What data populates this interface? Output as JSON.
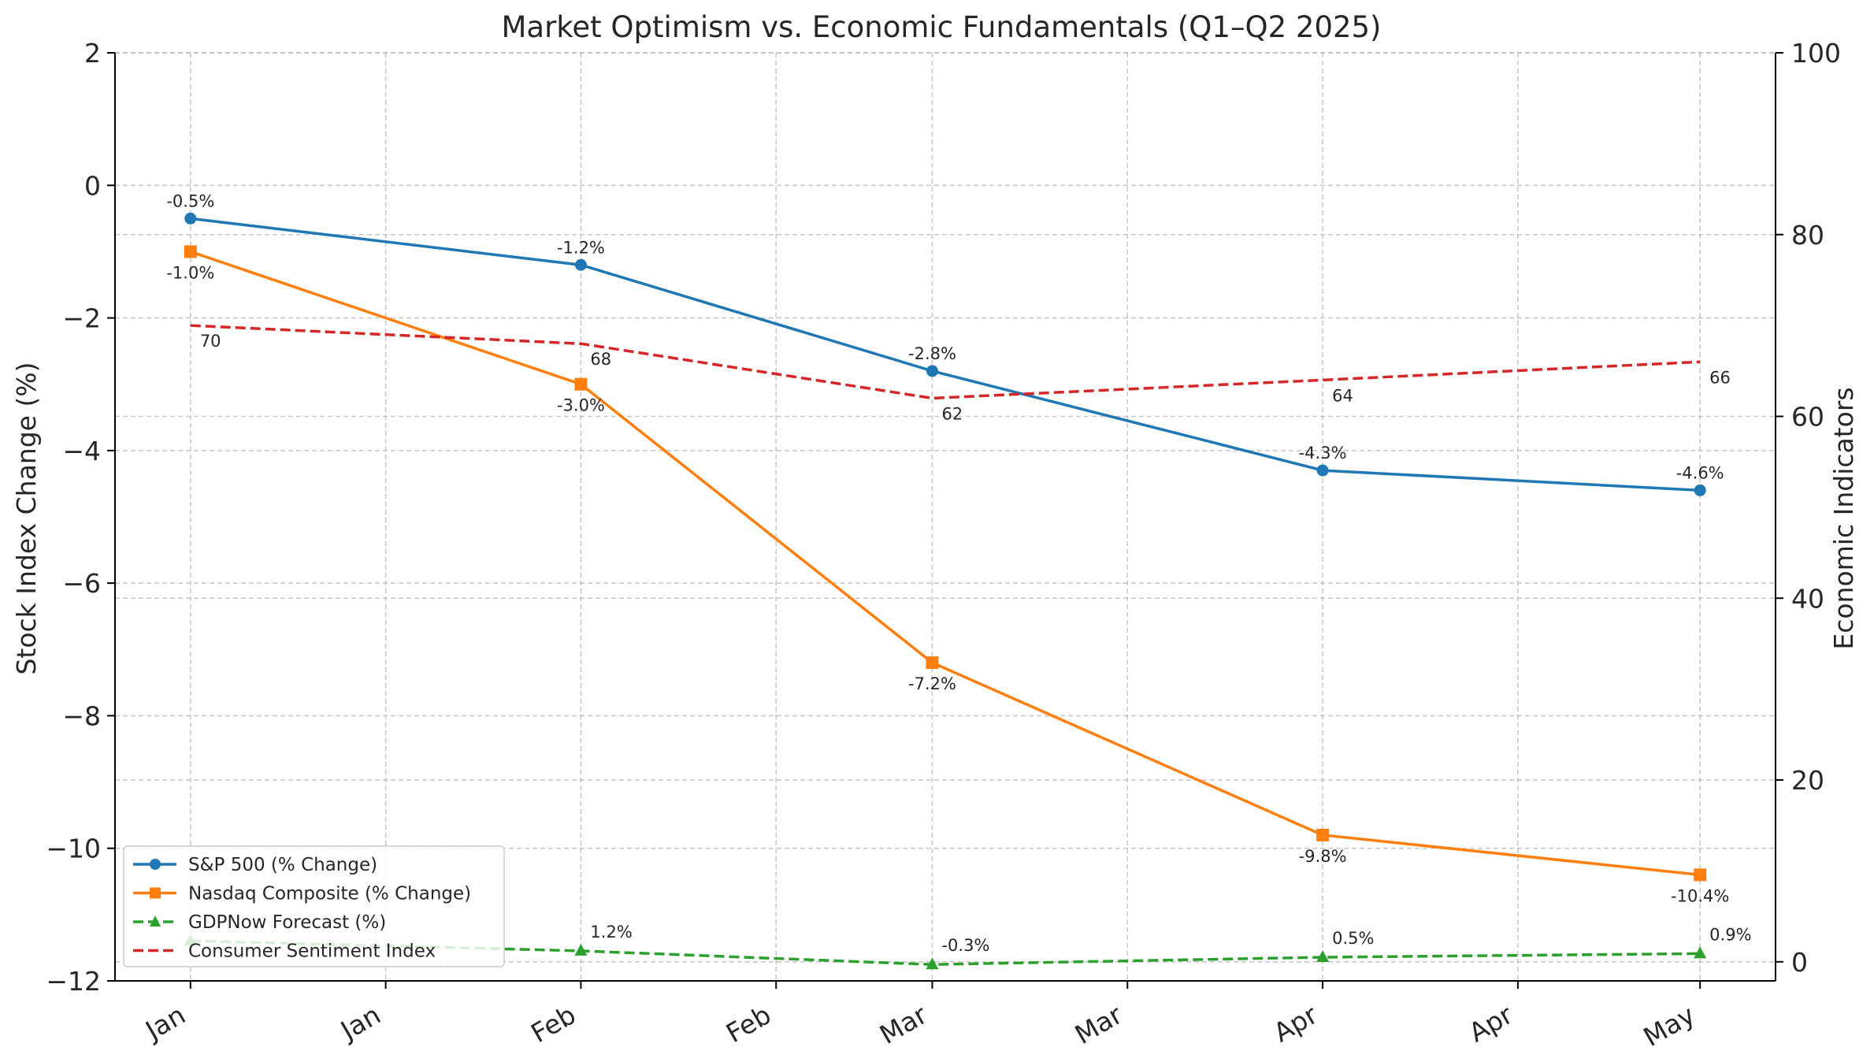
{
  "chart_data": {
    "type": "line",
    "title": "Market Optimism vs. Economic Fundamentals (Q1–Q2 2025)",
    "xlabel": "",
    "ylabel": "Stock Index Change (%)",
    "y2label": "Economic Indicators",
    "ylim": [
      -12,
      2
    ],
    "y2lim": [
      -2.1,
      100
    ],
    "yticks": [
      "2",
      "0",
      "−2",
      "−4",
      "−6",
      "−8",
      "−10",
      "−12"
    ],
    "y2ticks": [
      "100",
      "80",
      "60",
      "40",
      "20",
      "0"
    ],
    "x_ticks": [
      "Jan",
      "Jan",
      "Feb",
      "Feb",
      "Mar",
      "Mar",
      "Apr",
      "Apr",
      "May"
    ],
    "x_tick_days": [
      0,
      15,
      30,
      45,
      57,
      72,
      87,
      102,
      116
    ],
    "x_range_days": [
      -5.8,
      121.8
    ],
    "categories": [
      "Jan",
      "Feb",
      "Mar",
      "Apr",
      "May"
    ],
    "category_days": [
      0,
      30,
      57,
      87,
      116
    ],
    "grid": true,
    "legend_position": "bottom-left",
    "series": [
      {
        "name": "S&P 500 (% Change)",
        "axis": "left",
        "color": "#1f77b4",
        "marker": "circle",
        "linestyle": "solid",
        "values": [
          -0.5,
          -1.2,
          -2.8,
          -4.3,
          -4.6
        ],
        "labels": [
          "-0.5%",
          "-1.2%",
          "-2.8%",
          "-4.3%",
          "-4.6%"
        ]
      },
      {
        "name": "Nasdaq Composite (% Change)",
        "axis": "left",
        "color": "#ff7f0e",
        "marker": "square",
        "linestyle": "solid",
        "values": [
          -1.0,
          -3.0,
          -7.2,
          -9.8,
          -10.4
        ],
        "labels": [
          "-1.0%",
          "-3.0%",
          "-7.2%",
          "-9.8%",
          "-10.4%"
        ]
      },
      {
        "name": "GDPNow Forecast (%)",
        "axis": "right",
        "color": "#2ca02c",
        "marker": "triangle",
        "linestyle": "dashed",
        "values": [
          2.3,
          1.2,
          -0.3,
          0.5,
          0.9
        ],
        "labels": [
          "",
          "1.2%",
          "-0.3%",
          "0.5%",
          "0.9%"
        ]
      },
      {
        "name": "Consumer Sentiment Index",
        "axis": "right",
        "color": "#d62728",
        "marker": "none",
        "linestyle": "dashed",
        "values": [
          70,
          68,
          62,
          64,
          66
        ],
        "labels": [
          "70",
          "68",
          "62",
          "64",
          "66"
        ]
      }
    ]
  }
}
